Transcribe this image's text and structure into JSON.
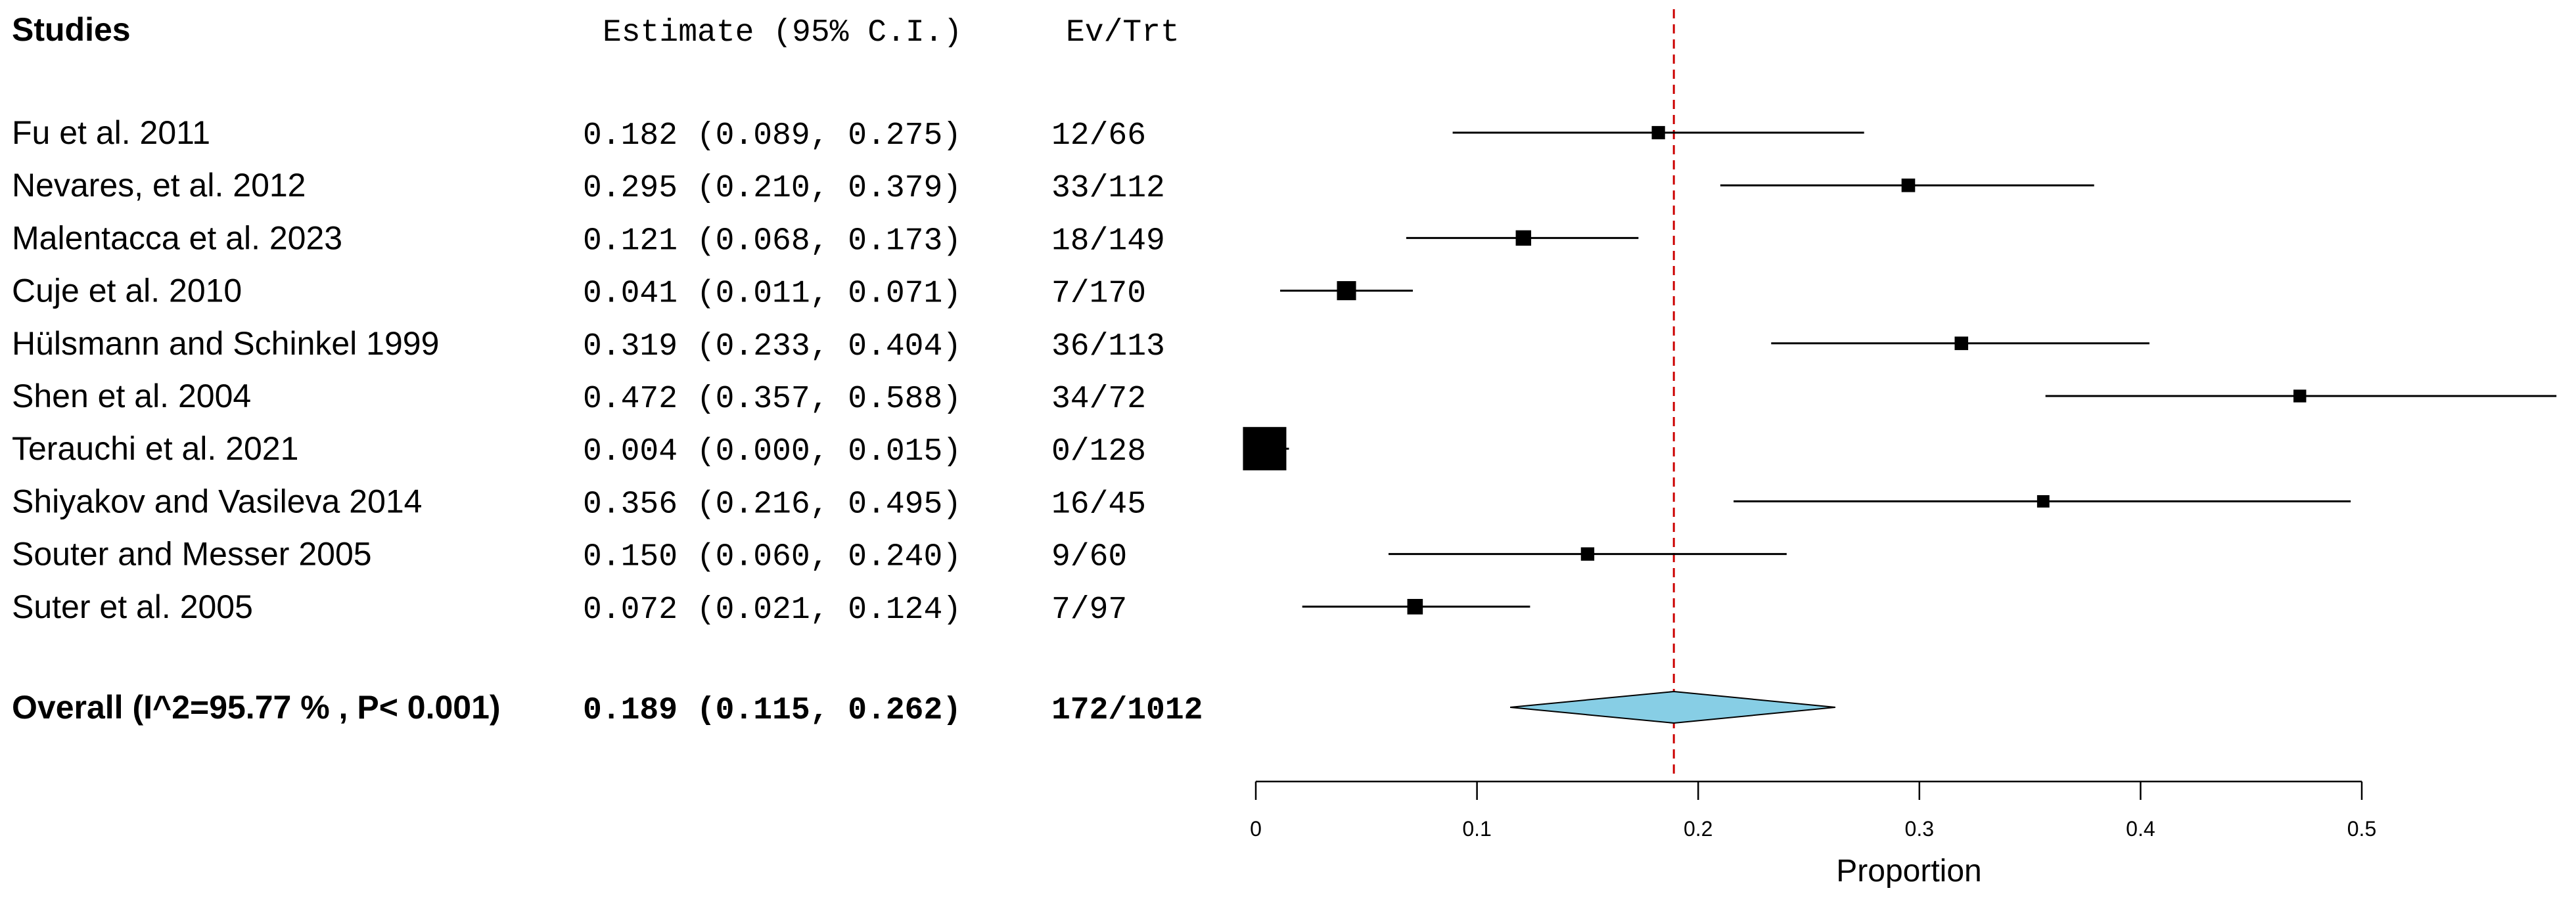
{
  "chart_data": {
    "type": "forest",
    "headers": {
      "studies": "Studies",
      "estimate": "Estimate (95% C.I.)",
      "events": "Ev/Trt"
    },
    "studies": [
      {
        "name": "Fu et al. 2011",
        "estimate": 0.182,
        "lower": 0.089,
        "upper": 0.275,
        "ci_text": "0.182 (0.089, 0.275)",
        "events": "12/66"
      },
      {
        "name": "Nevares, et al.  2012",
        "estimate": 0.295,
        "lower": 0.21,
        "upper": 0.379,
        "ci_text": "0.295 (0.210, 0.379)",
        "events": "33/112"
      },
      {
        "name": "Malentacca et al.  2023",
        "estimate": 0.121,
        "lower": 0.068,
        "upper": 0.173,
        "ci_text": "0.121 (0.068, 0.173)",
        "events": "18/149"
      },
      {
        "name": "Cuje et al. 2010",
        "estimate": 0.041,
        "lower": 0.011,
        "upper": 0.071,
        "ci_text": "0.041 (0.011, 0.071)",
        "events": "7/170"
      },
      {
        "name": "Hülsmann and Schinkel 1999",
        "estimate": 0.319,
        "lower": 0.233,
        "upper": 0.404,
        "ci_text": "0.319 (0.233, 0.404)",
        "events": "36/113"
      },
      {
        "name": "Shen et al. 2004",
        "estimate": 0.472,
        "lower": 0.357,
        "upper": 0.588,
        "ci_text": "0.472 (0.357, 0.588)",
        "events": "34/72"
      },
      {
        "name": "Terauchi et al. 2021",
        "estimate": 0.004,
        "lower": 0.0,
        "upper": 0.015,
        "ci_text": "0.004 (0.000, 0.015)",
        "events": "0/128"
      },
      {
        "name": "Shiyakov and Vasileva 2014",
        "estimate": 0.356,
        "lower": 0.216,
        "upper": 0.495,
        "ci_text": "0.356 (0.216, 0.495)",
        "events": "16/45"
      },
      {
        "name": "Souter and  Messer 2005",
        "estimate": 0.15,
        "lower": 0.06,
        "upper": 0.24,
        "ci_text": "0.150 (0.060, 0.240)",
        "events": "9/60"
      },
      {
        "name": "Suter et al. 2005",
        "estimate": 0.072,
        "lower": 0.021,
        "upper": 0.124,
        "ci_text": "0.072 (0.021, 0.124)",
        "events": "7/97"
      }
    ],
    "overall": {
      "label": "Overall (I^2=95.77 % , P< 0.001)",
      "estimate": 0.189,
      "lower": 0.115,
      "upper": 0.262,
      "ci_text": "0.189 (0.115, 0.262)",
      "events": "172/1012"
    },
    "xlabel": "Proportion",
    "xlim": [
      0,
      0.5
    ],
    "xticks": [
      0,
      0.1,
      0.2,
      0.3,
      0.4,
      0.5
    ],
    "xtick_labels": [
      "0",
      "0.1",
      "0.2",
      "0.3",
      "0.4",
      "0.5"
    ],
    "reference_line": 0.189,
    "colors": {
      "reference_line": "#cc0000",
      "diamond_fill": "#87cee5",
      "marker": "#000000"
    }
  }
}
